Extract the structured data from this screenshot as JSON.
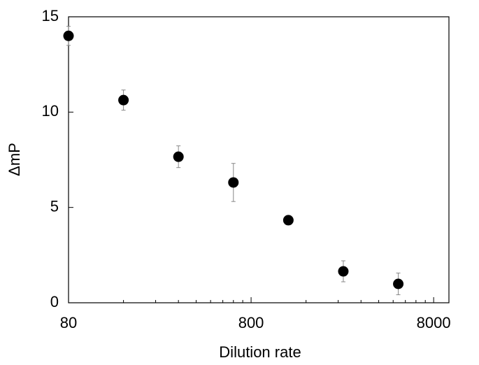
{
  "chart_data": {
    "type": "scatter",
    "x_label": "Dilution rate",
    "y_label": "ΔmP",
    "x": [
      80,
      160,
      320,
      640,
      1280,
      2560,
      5120
    ],
    "values": [
      14,
      10.63,
      7.66,
      6.31,
      4.33,
      1.65,
      0.99
    ],
    "errors": [
      0.5,
      0.53,
      0.57,
      1.0,
      0.15,
      0.55,
      0.57
    ],
    "color": "#000000",
    "error_color": "#888888",
    "xscale": "log",
    "xlim": [
      80,
      9700
    ],
    "xticks": [
      80,
      800,
      8000
    ],
    "xminorticks": [
      160,
      240,
      320,
      400,
      480,
      560,
      640,
      720,
      1600,
      2400,
      3200,
      4000,
      4800,
      5600,
      6400,
      7200
    ],
    "ylim": [
      0,
      15
    ],
    "yticks": [
      0,
      5,
      10,
      15
    ]
  }
}
